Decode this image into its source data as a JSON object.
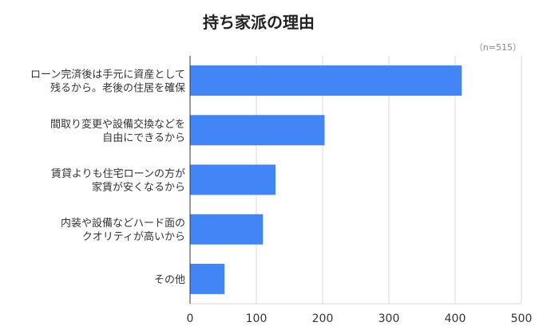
{
  "chart_data": {
    "type": "bar",
    "orientation": "horizontal",
    "title": "持ち家派の理由",
    "note": "（n=515）",
    "categories": [
      [
        "ローン完済後は手元に資産として",
        "残るから。老後の住居を確保"
      ],
      [
        "間取り変更や設備交換などを",
        "自由にできるから"
      ],
      [
        "賃貸よりも住宅ローンの方が",
        "家賃が安くなるから"
      ],
      [
        "内装や設備などハード面の",
        "クオリティが高いから"
      ],
      [
        "その他"
      ]
    ],
    "values": [
      410,
      203,
      129,
      110,
      52
    ],
    "xlim": [
      0,
      500
    ],
    "xticks": [
      0,
      100,
      200,
      300,
      400,
      500
    ],
    "grid": true,
    "bar_color": "#4285f4"
  }
}
